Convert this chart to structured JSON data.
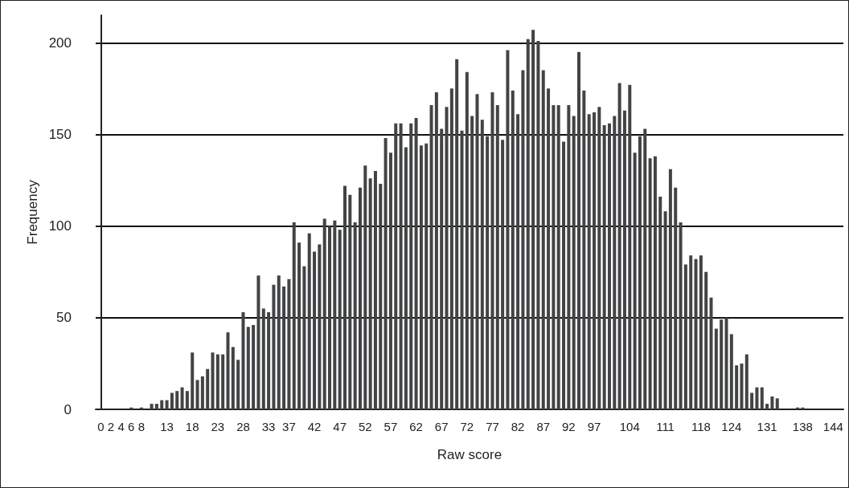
{
  "chart_data": {
    "type": "bar",
    "xlabel": "Raw score",
    "ylabel": "Frequency",
    "color": "#424345",
    "x": [
      6,
      7,
      8,
      9,
      10,
      11,
      12,
      13,
      14,
      15,
      16,
      17,
      18,
      19,
      20,
      21,
      22,
      23,
      24,
      25,
      26,
      27,
      28,
      29,
      30,
      31,
      32,
      33,
      34,
      35,
      36,
      37,
      38,
      39,
      40,
      41,
      42,
      43,
      44,
      45,
      46,
      47,
      48,
      49,
      50,
      51,
      52,
      53,
      54,
      55,
      56,
      57,
      58,
      59,
      60,
      61,
      62,
      63,
      64,
      65,
      66,
      67,
      68,
      69,
      70,
      71,
      72,
      73,
      74,
      75,
      76,
      77,
      78,
      79,
      80,
      81,
      82,
      83,
      84,
      85,
      86,
      87,
      88,
      89,
      90,
      91,
      92,
      93,
      94,
      95,
      96,
      97,
      98,
      99,
      100,
      101,
      102,
      103,
      104,
      105,
      106,
      107,
      108,
      109,
      110,
      111,
      112,
      113,
      114,
      115,
      116,
      117,
      118,
      119,
      120,
      121,
      122,
      123,
      124,
      125,
      126,
      127,
      128,
      129,
      130,
      131,
      132,
      133,
      134,
      135,
      136,
      137,
      138
    ],
    "values": [
      1,
      0,
      1,
      0,
      3,
      3,
      5,
      5,
      9,
      10,
      12,
      10,
      31,
      16,
      18,
      22,
      31,
      30,
      30,
      42,
      34,
      27,
      53,
      45,
      46,
      73,
      55,
      53,
      68,
      73,
      67,
      71,
      102,
      91,
      78,
      96,
      86,
      90,
      104,
      100,
      103,
      98,
      122,
      117,
      102,
      121,
      133,
      126,
      130,
      123,
      148,
      140,
      156,
      156,
      143,
      156,
      159,
      144,
      145,
      166,
      173,
      153,
      165,
      175,
      191,
      152,
      184,
      160,
      172,
      158,
      149,
      173,
      166,
      147,
      196,
      174,
      161,
      185,
      202,
      207,
      201,
      185,
      175,
      166,
      166,
      146,
      166,
      160,
      195,
      174,
      161,
      162,
      165,
      155,
      156,
      160,
      178,
      163,
      177,
      140,
      149,
      153,
      137,
      138,
      116,
      108,
      131,
      121,
      102,
      79,
      84,
      82,
      84,
      75,
      61,
      44,
      49,
      50,
      41,
      24,
      25,
      30,
      9,
      12,
      12,
      3,
      7,
      6,
      0,
      0,
      0,
      1,
      1
    ],
    "xlim": [
      -1,
      146
    ],
    "xticks": [
      0,
      2,
      4,
      6,
      8,
      13,
      18,
      23,
      28,
      33,
      37,
      42,
      47,
      52,
      57,
      62,
      67,
      72,
      77,
      82,
      87,
      92,
      97,
      104,
      111,
      118,
      124,
      131,
      138,
      144
    ],
    "ylim": [
      0,
      215
    ],
    "yticks": [
      0,
      50,
      100,
      150,
      200
    ],
    "grid": "y"
  }
}
